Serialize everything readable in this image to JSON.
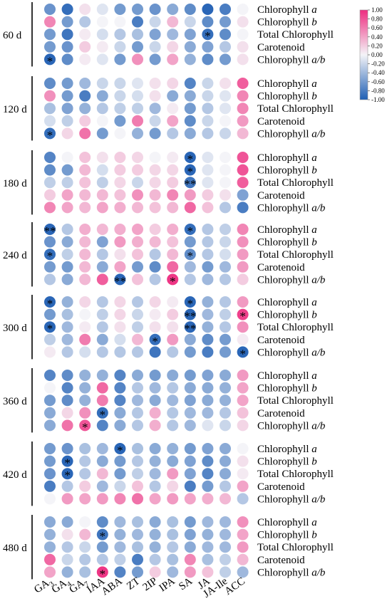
{
  "chart_data": {
    "type": "heatmap",
    "title": "",
    "xlabel": "",
    "ylabel": "",
    "columns": [
      "GA3",
      "GA4",
      "GA7",
      "IAA",
      "ABA",
      "ZT",
      "2IP",
      "IPA",
      "SA",
      "JA",
      "JA-Ile",
      "ACC"
    ],
    "column_labels": [
      {
        "base": "GA",
        "sub": "3"
      },
      {
        "base": "GA",
        "sub": "4"
      },
      {
        "base": "GA",
        "sub": "7"
      },
      {
        "base": "IAA",
        "sub": ""
      },
      {
        "base": "ABA",
        "sub": ""
      },
      {
        "base": "ZT",
        "sub": ""
      },
      {
        "base": "2IP",
        "sub": ""
      },
      {
        "base": "IPA",
        "sub": ""
      },
      {
        "base": "SA",
        "sub": ""
      },
      {
        "base": "JA",
        "sub": ""
      },
      {
        "base": "JA-Ile",
        "sub": ""
      },
      {
        "base": "ACC",
        "sub": ""
      }
    ],
    "row_labels": [
      {
        "text": "Chlorophyll ",
        "ital": "a"
      },
      {
        "text": "Chlorophyll ",
        "ital": "b"
      },
      {
        "text": "Total Chlorophyll",
        "ital": ""
      },
      {
        "text": "Carotenoid",
        "ital": ""
      },
      {
        "text": "Chlorophyll ",
        "ital": "a/b"
      }
    ],
    "colorbar": {
      "min": -1.0,
      "max": 1.0,
      "ticks": [
        "1.00",
        "0.80",
        "0.60",
        "0.40",
        "0.20",
        "0.00",
        "-0.20",
        "-0.40",
        "-0.60",
        "-0.80",
        "-1.00"
      ],
      "colors": {
        "negative": "#1f5fb4",
        "neutral": "#f4f4f8",
        "positive": "#ee2c7f"
      }
    },
    "groups": [
      {
        "label": "60 d",
        "values": [
          [
            -0.65,
            -0.9,
            0.1,
            -0.1,
            -0.6,
            -0.6,
            -0.65,
            -0.5,
            -0.7,
            -0.95,
            -0.8,
            0.0
          ],
          [
            0.55,
            -0.6,
            -0.3,
            0.0,
            0.0,
            -0.8,
            -0.2,
            0.3,
            -0.2,
            -0.7,
            -0.6,
            0.1
          ],
          [
            -0.6,
            -0.85,
            0.05,
            -0.15,
            -0.3,
            -0.35,
            -0.55,
            -0.4,
            -0.55,
            -0.9,
            -0.7,
            0.0
          ],
          [
            -0.6,
            -0.65,
            0.2,
            0.05,
            -0.2,
            -0.6,
            -0.2,
            0.15,
            -0.5,
            -0.55,
            -0.3,
            0.1
          ],
          [
            -0.95,
            -0.7,
            0.05,
            -0.1,
            -0.6,
            0.5,
            -0.6,
            0.4,
            -0.45,
            -0.7,
            -0.6,
            0.1
          ]
        ],
        "stars": [
          {
            "row": 2,
            "col": 9,
            "mark": "*"
          },
          {
            "row": 4,
            "col": 0,
            "mark": "*"
          }
        ]
      },
      {
        "label": "120 d",
        "values": [
          [
            -0.7,
            -0.6,
            -0.4,
            -0.2,
            -0.2,
            -0.1,
            0.1,
            0.15,
            -0.75,
            -0.2,
            0.1,
            0.75
          ],
          [
            0.5,
            -0.6,
            -0.8,
            -0.5,
            -0.2,
            -0.15,
            0.1,
            -0.5,
            -0.5,
            -0.2,
            -0.1,
            0.55
          ],
          [
            -0.35,
            -0.55,
            -0.45,
            -0.3,
            -0.25,
            -0.25,
            -0.4,
            0.05,
            -0.6,
            -0.3,
            -0.1,
            0.55
          ],
          [
            -0.15,
            -0.25,
            0.2,
            0.0,
            -0.6,
            0.6,
            -0.2,
            0.4,
            -0.7,
            -0.2,
            0.0,
            0.45
          ],
          [
            -0.9,
            0.15,
            0.65,
            -0.6,
            0.0,
            -0.45,
            -0.6,
            -0.3,
            -0.5,
            -0.3,
            -0.2,
            0.3
          ]
        ],
        "stars": [
          {
            "row": 4,
            "col": 0,
            "mark": "*"
          }
        ]
      },
      {
        "label": "180 d",
        "values": [
          [
            -0.75,
            0.0,
            0.25,
            0.1,
            0.2,
            0.15,
            0.0,
            0.05,
            -0.95,
            -0.1,
            0.0,
            0.8
          ],
          [
            -0.7,
            -0.6,
            0.3,
            -0.15,
            0.2,
            0.2,
            0.15,
            0.15,
            -0.95,
            -0.1,
            0.0,
            0.8
          ],
          [
            -0.25,
            -0.25,
            0.25,
            -0.25,
            0.15,
            -0.2,
            0.15,
            0.2,
            -0.85,
            -0.1,
            0.0,
            0.75
          ],
          [
            0.2,
            0.4,
            0.3,
            0.3,
            0.25,
            0.5,
            0.3,
            0.55,
            0.45,
            0.2,
            0.1,
            -0.55
          ],
          [
            0.55,
            0.4,
            0.3,
            0.4,
            0.35,
            0.3,
            0.25,
            0.3,
            0.7,
            0.25,
            -0.3,
            -0.8
          ]
        ],
        "stars": [
          {
            "row": 0,
            "col": 8,
            "mark": "*"
          },
          {
            "row": 1,
            "col": 8,
            "mark": "*"
          },
          {
            "row": 2,
            "col": 8,
            "mark": "**"
          }
        ]
      },
      {
        "label": "240 d",
        "values": [
          [
            -0.95,
            -0.3,
            0.35,
            0.3,
            0.35,
            0.4,
            0.2,
            0.35,
            -0.9,
            -0.3,
            -0.25,
            0.55
          ],
          [
            -0.65,
            -0.5,
            0.3,
            -0.55,
            0.45,
            0.35,
            0.3,
            0.25,
            -0.6,
            -0.3,
            -0.2,
            0.5
          ],
          [
            -0.9,
            -0.25,
            0.3,
            -0.3,
            0.1,
            0.25,
            -0.3,
            0.3,
            -0.7,
            -0.3,
            -0.15,
            0.45
          ],
          [
            -0.6,
            -0.6,
            0.3,
            -0.5,
            0.4,
            -0.6,
            -0.7,
            0.7,
            -0.4,
            -0.6,
            -0.4,
            0.45
          ],
          [
            -0.3,
            -0.5,
            0.3,
            0.75,
            -0.95,
            0.25,
            -0.3,
            0.95,
            -0.3,
            -0.4,
            -0.3,
            0.2
          ]
        ],
        "stars": [
          {
            "row": 0,
            "col": 0,
            "mark": "**"
          },
          {
            "row": 0,
            "col": 8,
            "mark": "*"
          },
          {
            "row": 2,
            "col": 0,
            "mark": "*"
          },
          {
            "row": 2,
            "col": 8,
            "mark": "*"
          },
          {
            "row": 4,
            "col": 4,
            "mark": "**"
          },
          {
            "row": 4,
            "col": 7,
            "mark": "*"
          }
        ]
      },
      {
        "label": "300 d",
        "values": [
          [
            -0.95,
            -0.45,
            0.15,
            -0.3,
            0.15,
            -0.3,
            0.15,
            0.05,
            -0.95,
            -0.45,
            -0.3,
            0.45
          ],
          [
            -0.6,
            -0.35,
            0.0,
            -0.25,
            0.15,
            -0.2,
            0.05,
            0.2,
            -0.95,
            -0.4,
            -0.25,
            0.9
          ],
          [
            -0.95,
            -0.4,
            0.05,
            -0.3,
            0.1,
            -0.25,
            0.1,
            0.1,
            -0.95,
            -0.45,
            -0.3,
            0.5
          ],
          [
            -0.25,
            -0.4,
            0.6,
            -0.5,
            -0.15,
            0.3,
            -0.9,
            0.45,
            -0.5,
            -0.7,
            -0.6,
            0.05
          ],
          [
            0.05,
            -0.3,
            -0.15,
            -0.3,
            -0.3,
            -0.3,
            -0.85,
            -0.3,
            -0.6,
            -0.8,
            -0.6,
            -0.95
          ]
        ],
        "stars": [
          {
            "row": 0,
            "col": 0,
            "mark": "*"
          },
          {
            "row": 0,
            "col": 8,
            "mark": "*"
          },
          {
            "row": 1,
            "col": 8,
            "mark": "**"
          },
          {
            "row": 1,
            "col": 11,
            "mark": "*"
          },
          {
            "row": 2,
            "col": 0,
            "mark": "*"
          },
          {
            "row": 2,
            "col": 8,
            "mark": "**"
          },
          {
            "row": 3,
            "col": 6,
            "mark": "*"
          },
          {
            "row": 4,
            "col": 11,
            "mark": "*"
          }
        ]
      },
      {
        "label": "360 d",
        "values": [
          [
            -0.75,
            -0.7,
            -0.45,
            -0.45,
            -0.75,
            -0.5,
            -0.6,
            -0.5,
            -0.6,
            -0.55,
            -0.5,
            0.45
          ],
          [
            0.0,
            -0.75,
            -0.45,
            0.7,
            -0.75,
            -0.3,
            -0.4,
            -0.3,
            -0.5,
            -0.5,
            -0.45,
            0.4
          ],
          [
            -0.6,
            -0.7,
            -0.45,
            0.6,
            -0.75,
            -0.4,
            -0.5,
            -0.4,
            -0.55,
            -0.5,
            -0.45,
            0.4
          ],
          [
            -0.5,
            0.15,
            0.5,
            -0.9,
            -0.5,
            -0.3,
            0.35,
            -0.3,
            -0.4,
            -0.4,
            -0.3,
            0.25
          ],
          [
            -0.5,
            0.65,
            0.8,
            -0.75,
            -0.5,
            -0.3,
            0.35,
            -0.3,
            -0.4,
            -0.1,
            -0.2,
            0.15
          ]
        ],
        "stars": [
          {
            "row": 3,
            "col": 3,
            "mark": "*"
          },
          {
            "row": 4,
            "col": 2,
            "mark": "*"
          }
        ]
      },
      {
        "label": "420 d",
        "values": [
          [
            -0.6,
            -0.65,
            -0.35,
            -0.4,
            -0.95,
            -0.35,
            -0.5,
            -0.45,
            -0.6,
            -0.55,
            -0.5,
            0.0
          ],
          [
            -0.6,
            -0.95,
            -0.3,
            -0.5,
            -0.6,
            -0.3,
            -0.45,
            -0.5,
            -0.55,
            -0.7,
            -0.5,
            0.1
          ],
          [
            -0.65,
            -0.95,
            -0.3,
            0.3,
            -0.6,
            -0.25,
            -0.4,
            0.45,
            -0.55,
            -0.75,
            -0.5,
            0.05
          ],
          [
            -0.8,
            -0.3,
            0.2,
            -0.4,
            -0.2,
            0.25,
            -0.3,
            0.15,
            -0.8,
            -0.6,
            -0.3,
            0.4
          ],
          [
            0.0,
            0.45,
            0.4,
            0.45,
            0.55,
            0.65,
            0.4,
            0.45,
            0.4,
            0.35,
            0.3,
            -0.3
          ]
        ],
        "stars": [
          {
            "row": 0,
            "col": 4,
            "mark": "*"
          },
          {
            "row": 1,
            "col": 1,
            "mark": "*"
          },
          {
            "row": 2,
            "col": 1,
            "mark": "*"
          }
        ]
      },
      {
        "label": "480 d",
        "values": [
          [
            -0.5,
            -0.5,
            0.0,
            -0.7,
            -0.4,
            -0.35,
            -0.5,
            -0.35,
            -0.6,
            -0.4,
            -0.4,
            0.5
          ],
          [
            -0.45,
            0.1,
            0.3,
            -0.85,
            -0.45,
            -0.4,
            -0.45,
            -0.35,
            -0.55,
            -0.45,
            -0.4,
            0.4
          ],
          [
            -0.45,
            -0.3,
            -0.2,
            -0.6,
            -0.4,
            -0.35,
            -0.45,
            -0.3,
            -0.5,
            -0.4,
            -0.4,
            0.45
          ],
          [
            0.7,
            -0.2,
            -0.3,
            -0.3,
            -0.25,
            -0.8,
            -0.3,
            -0.35,
            0.55,
            -0.35,
            -0.25,
            0.3
          ],
          [
            0.4,
            -0.45,
            -0.35,
            0.95,
            -0.75,
            -0.6,
            0.2,
            -0.4,
            0.45,
            0.25,
            -0.25,
            -0.4
          ]
        ],
        "stars": [
          {
            "row": 1,
            "col": 3,
            "mark": "*"
          },
          {
            "row": 4,
            "col": 3,
            "mark": "*"
          }
        ]
      }
    ]
  }
}
